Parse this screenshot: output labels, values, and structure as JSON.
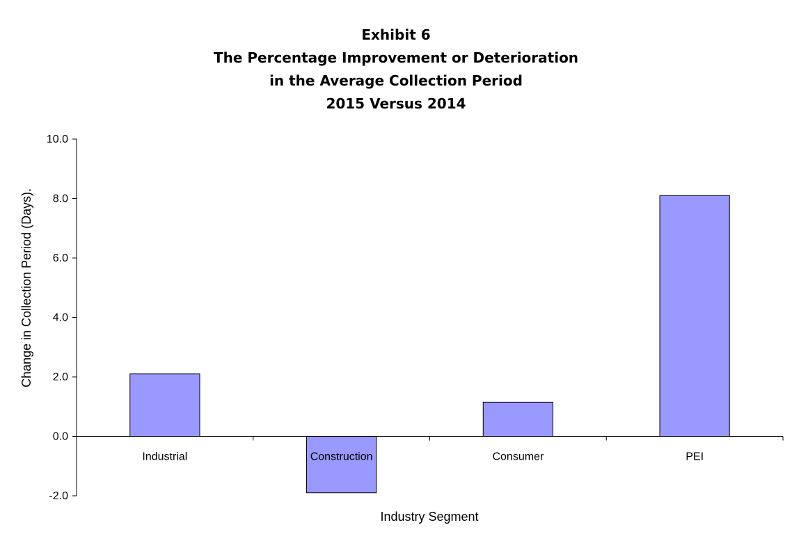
{
  "chart_data": {
    "type": "bar",
    "title": "Exhibit 6",
    "title_lines": [
      "Exhibit 6",
      "The Percentage Improvement or Deterioration",
      "in the Average Collection Period",
      "2015 Versus 2014"
    ],
    "categories": [
      "Industrial",
      "Construction",
      "Consumer",
      "PEI"
    ],
    "values": [
      2.1,
      -1.9,
      1.15,
      8.1
    ],
    "xlabel": "Industry Segment",
    "ylabel": "Change in Collection Period (Days).",
    "ylim": [
      -2.0,
      10.0
    ],
    "yticks": [
      "-2.0",
      "0.0",
      "2.0",
      "4.0",
      "6.0",
      "8.0",
      "10.0"
    ],
    "ytick_values": [
      -2,
      0,
      2,
      4,
      6,
      8,
      10
    ],
    "grid": false,
    "legend": "none",
    "bar_color": "#9999ff",
    "bar_stroke": "#000000"
  }
}
